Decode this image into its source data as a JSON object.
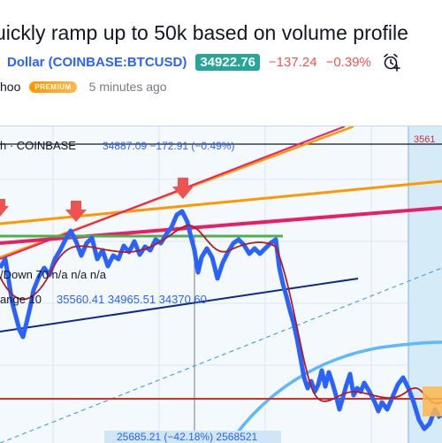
{
  "idea": {
    "title": "uickly ramp up to 50k based on volume profile"
  },
  "symbol": {
    "name": "Dollar (COINBASE:BTCUSD)",
    "price": "34922.76",
    "change": "−137.24",
    "change_pct": "−0.39%"
  },
  "author": {
    "name": "hoo",
    "badge": "PREMIUM",
    "time": "5 minutes ago"
  },
  "chart": {
    "header": {
      "symbol": "h · COINBASE",
      "values": "34887.09  −172.91 (−0.49%)"
    },
    "indicators": {
      "updown": "/Down 70  n/a  n/a  n/a",
      "range_label": "ange 10",
      "range_values": "35560.41  34965.51  34370.60"
    },
    "measure_label": "25685.21 (−42.18%)  2568521",
    "right_price_label": "3561",
    "colors": {
      "background": "#f4f9fd",
      "price_line": "#2962ff",
      "ma_line": "#b71c1c",
      "up_arrow": "#ef5350",
      "orange_line": "#ff9800",
      "magenta_line": "#e91e63",
      "green_line": "#4caf50",
      "navy_line": "#0d2a8a",
      "volume_curve": "#5cb8ff",
      "red_line": "#d32f2f"
    }
  }
}
